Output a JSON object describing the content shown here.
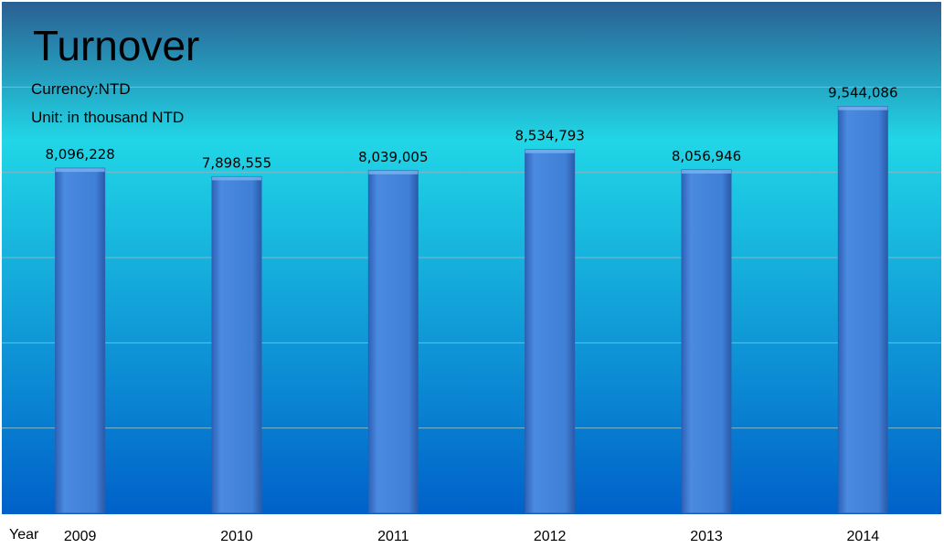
{
  "chart_data": {
    "type": "bar",
    "title": "Turnover",
    "subtitle_lines": [
      "Currency:NTD",
      "Unit: in thousand NTD"
    ],
    "xlabel": "Year",
    "ylabel": "",
    "categories": [
      "2009",
      "2010",
      "2011",
      "2012",
      "2013",
      "2014"
    ],
    "values": [
      8096228,
      7898555,
      8039005,
      8534793,
      8056946,
      9544086
    ],
    "value_labels": [
      "8,096,228",
      "7,898,555",
      "8,039,005",
      "8,534,793",
      "8,056,946",
      "9,544,086"
    ],
    "ylim": [
      0,
      12000000
    ],
    "grid": true,
    "legend": "none"
  },
  "colors": {
    "background_top": "#2a5f92",
    "background_mid": "#21d6e6",
    "background_bottom": "#0061c9",
    "bar_fill": "#3f7fd6",
    "bar_edge": "#2b5fae",
    "gridline": "#7fb8c9"
  }
}
